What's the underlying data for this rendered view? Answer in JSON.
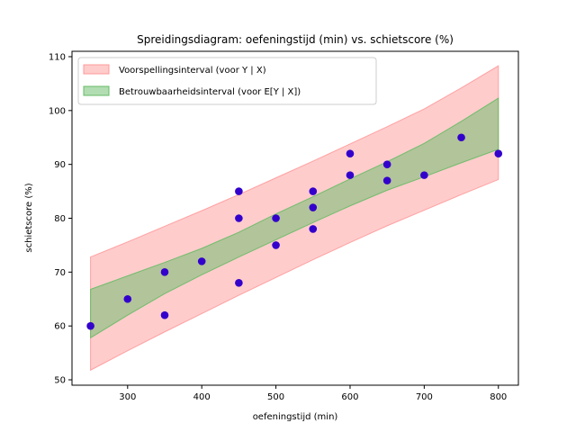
{
  "chart_data": {
    "type": "scatter",
    "title": "Spreidingsdiagram: oefeningstijd (min) vs. schietscore (%)",
    "xlabel": "oefeningstijd (min)",
    "ylabel": "schietscore (%)",
    "xlim": [
      225,
      827
    ],
    "ylim": [
      49,
      111
    ],
    "x_ticks": [
      300,
      400,
      500,
      600,
      700,
      800
    ],
    "y_ticks": [
      50,
      60,
      70,
      80,
      90,
      100,
      110
    ],
    "grid": false,
    "legend_position": "upper-left",
    "point_color": "#3300cc",
    "points": [
      {
        "x": 250,
        "y": 60
      },
      {
        "x": 300,
        "y": 65
      },
      {
        "x": 350,
        "y": 62
      },
      {
        "x": 350,
        "y": 70
      },
      {
        "x": 400,
        "y": 72
      },
      {
        "x": 450,
        "y": 68
      },
      {
        "x": 450,
        "y": 80
      },
      {
        "x": 450,
        "y": 85
      },
      {
        "x": 500,
        "y": 75
      },
      {
        "x": 500,
        "y": 80
      },
      {
        "x": 550,
        "y": 78
      },
      {
        "x": 550,
        "y": 82
      },
      {
        "x": 550,
        "y": 85
      },
      {
        "x": 600,
        "y": 88
      },
      {
        "x": 600,
        "y": 92
      },
      {
        "x": 650,
        "y": 87
      },
      {
        "x": 650,
        "y": 90
      },
      {
        "x": 700,
        "y": 88
      },
      {
        "x": 750,
        "y": 95
      },
      {
        "x": 800,
        "y": 92
      }
    ],
    "bands": [
      {
        "name": "Voorspellingsinterval (voor Y | X)",
        "color": "#ff9999",
        "opacity": 0.5,
        "x": [
          250,
          300,
          350,
          400,
          450,
          500,
          550,
          600,
          650,
          700,
          750,
          800
        ],
        "lower": [
          51.8,
          55.4,
          58.9,
          62.3,
          65.7,
          69.0,
          72.3,
          75.5,
          78.6,
          81.5,
          84.4,
          87.2
        ],
        "upper": [
          72.8,
          75.6,
          78.5,
          81.4,
          84.4,
          87.5,
          90.6,
          93.8,
          97.0,
          100.3,
          104.2,
          108.3
        ]
      },
      {
        "name": "Betrouwbaarheidsinterval (voor E[Y | X])",
        "color": "#66bb66",
        "opacity": 0.5,
        "x": [
          250,
          300,
          350,
          400,
          450,
          500,
          550,
          600,
          650,
          700,
          750,
          800
        ],
        "lower": [
          57.8,
          62.0,
          66.0,
          69.5,
          72.8,
          76.0,
          79.2,
          82.3,
          85.2,
          87.7,
          90.3,
          92.8
        ],
        "upper": [
          66.8,
          69.3,
          71.8,
          74.4,
          77.4,
          80.8,
          84.0,
          87.3,
          90.5,
          93.9,
          98.0,
          102.3
        ]
      }
    ],
    "legend": [
      {
        "label": "Voorspellingsinterval (voor Y | X)",
        "color": "#ff9999"
      },
      {
        "label": "Betrouwbaarheidsinterval (voor E[Y | X])",
        "color": "#66bb66"
      }
    ]
  }
}
